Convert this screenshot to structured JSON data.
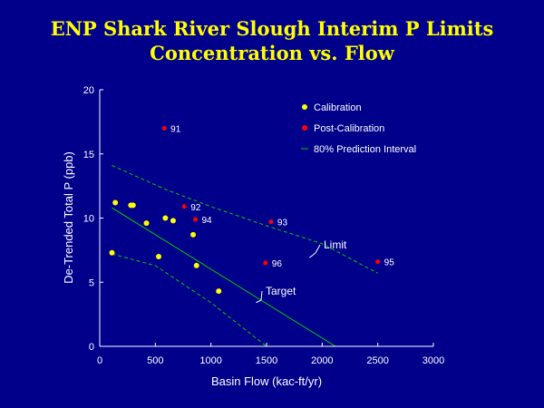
{
  "title_line1": "ENP Shark River Slough Interim P Limits",
  "title_line2": "Concentration vs. Flow",
  "colors": {
    "background": "#00008b",
    "title": "#ffff00",
    "calibration": "#ffff00",
    "post_calibration": "#ff0000",
    "regression": "#00cc00",
    "prediction_interval": "#00cc00",
    "limit": "#00cc00",
    "axis": "#ffffff"
  },
  "chart_data": {
    "type": "scatter",
    "xlabel": "Basin Flow (kac-ft/yr)",
    "ylabel": "De-Trended Total P (ppb)",
    "xlim": [
      0,
      3000
    ],
    "ylim": [
      0,
      20
    ],
    "x_ticks": [
      0,
      500,
      1000,
      1500,
      2000,
      2500,
      3000
    ],
    "y_ticks": [
      0,
      5,
      10,
      15,
      20
    ],
    "legend": [
      {
        "label": "Calibration",
        "marker": "circle",
        "color": "#ffff00"
      },
      {
        "label": "Post-Calibration",
        "marker": "circle",
        "color": "#ff0000"
      },
      {
        "label": "80% Prediction Interval",
        "marker": "dash",
        "color": "#00cc00"
      }
    ],
    "series": [
      {
        "name": "Calibration",
        "points": [
          {
            "x": 110,
            "y": 7.3
          },
          {
            "x": 140,
            "y": 11.2
          },
          {
            "x": 280,
            "y": 11.0
          },
          {
            "x": 300,
            "y": 11.0
          },
          {
            "x": 420,
            "y": 9.6
          },
          {
            "x": 530,
            "y": 7.0
          },
          {
            "x": 590,
            "y": 10.0
          },
          {
            "x": 660,
            "y": 9.8
          },
          {
            "x": 840,
            "y": 8.7
          },
          {
            "x": 870,
            "y": 6.3
          },
          {
            "x": 1070,
            "y": 4.3
          }
        ]
      },
      {
        "name": "Post-Calibration",
        "points": [
          {
            "x": 580,
            "y": 17.0,
            "label": "91"
          },
          {
            "x": 760,
            "y": 10.9,
            "label": "92"
          },
          {
            "x": 1540,
            "y": 9.7,
            "label": "93"
          },
          {
            "x": 860,
            "y": 9.9,
            "label": "94"
          },
          {
            "x": 2500,
            "y": 6.6,
            "label": "95"
          },
          {
            "x": 1490,
            "y": 6.5,
            "label": "96"
          }
        ]
      }
    ],
    "lines": [
      {
        "name": "Target",
        "style": "solid",
        "x": [
          110,
          2120
        ],
        "y": [
          10.8,
          0
        ]
      },
      {
        "name": "Limit",
        "style": "dashed",
        "x": [
          110,
          600,
          1000,
          1500,
          2000,
          2500
        ],
        "y": [
          14.1,
          12.2,
          10.9,
          9.4,
          8.0,
          5.7
        ]
      },
      {
        "name": "Lower",
        "style": "dashed",
        "x": [
          110,
          500,
          1000,
          1500
        ],
        "y": [
          7.2,
          6.3,
          3.4,
          0
        ]
      }
    ],
    "annotations": [
      {
        "text": "Limit",
        "x": 2000,
        "y": 7.9
      },
      {
        "text": "Target",
        "x": 1520,
        "y": 4.4
      }
    ]
  }
}
